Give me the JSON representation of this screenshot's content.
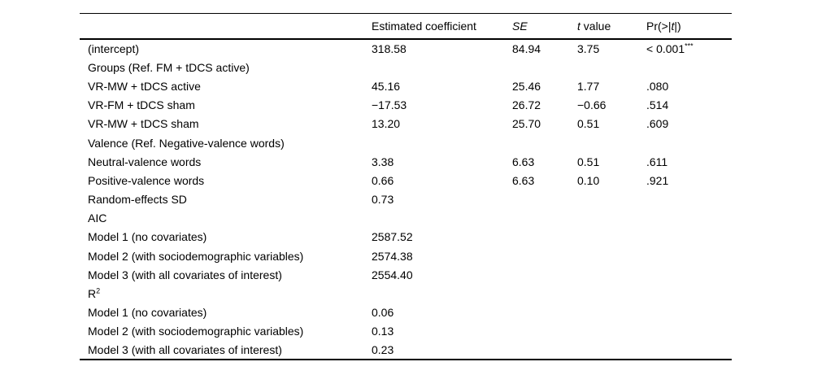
{
  "page": {
    "background_color": "#ffffff",
    "text_color": "#000000",
    "rule_color": "#000000"
  },
  "table": {
    "columns": [
      {
        "segs": [
          {
            "t": ""
          }
        ]
      },
      {
        "segs": [
          {
            "t": "Estimated coefficient"
          }
        ]
      },
      {
        "segs": [
          {
            "t": "SE",
            "i": true
          }
        ]
      },
      {
        "segs": [
          {
            "t": "t",
            "i": true
          },
          {
            "t": " value"
          }
        ]
      },
      {
        "segs": [
          {
            "t": "Pr(>|"
          },
          {
            "t": "t",
            "i": true
          },
          {
            "t": "|)"
          }
        ]
      }
    ],
    "rows": [
      {
        "label": "(intercept)",
        "cells": [
          "318.58",
          "84.94",
          "3.75",
          [
            {
              "t": "< 0.001"
            },
            {
              "t": "***",
              "sup": true
            }
          ]
        ]
      },
      {
        "label": "Groups (Ref. FM + tDCS active)",
        "cells": [
          "",
          "",
          "",
          ""
        ]
      },
      {
        "label": "VR-MW + tDCS active",
        "cells": [
          "45.16",
          "25.46",
          "1.77",
          ".080"
        ]
      },
      {
        "label": "VR-FM + tDCS sham",
        "cells": [
          "−17.53",
          "26.72",
          "−0.66",
          ".514"
        ]
      },
      {
        "label": "VR-MW + tDCS sham",
        "cells": [
          "13.20",
          "25.70",
          "0.51",
          ".609"
        ]
      },
      {
        "label": "Valence (Ref. Negative-valence words)",
        "cells": [
          "",
          "",
          "",
          ""
        ]
      },
      {
        "label": "Neutral-valence words",
        "cells": [
          "3.38",
          "6.63",
          "0.51",
          ".611"
        ]
      },
      {
        "label": "Positive-valence words",
        "cells": [
          "0.66",
          "6.63",
          "0.10",
          ".921"
        ]
      },
      {
        "label": "Random-effects SD",
        "cells": [
          "0.73",
          "",
          "",
          ""
        ]
      },
      {
        "label": "AIC",
        "cells": [
          "",
          "",
          "",
          ""
        ]
      },
      {
        "label": "Model 1 (no covariates)",
        "cells": [
          "2587.52",
          "",
          "",
          ""
        ]
      },
      {
        "label": "Model 2 (with sociodemographic variables)",
        "cells": [
          "2574.38",
          "",
          "",
          ""
        ]
      },
      {
        "label": "Model 3 (with all covariates of interest)",
        "cells": [
          "2554.40",
          "",
          "",
          ""
        ]
      },
      {
        "label": [
          {
            "t": "R"
          },
          {
            "t": "2",
            "sup": true
          }
        ],
        "cells": [
          "",
          "",
          "",
          ""
        ]
      },
      {
        "label": "Model 1 (no covariates)",
        "cells": [
          "0.06",
          "",
          "",
          ""
        ]
      },
      {
        "label": "Model 2 (with sociodemographic variables)",
        "cells": [
          "0.13",
          "",
          "",
          ""
        ]
      },
      {
        "label": "Model 3 (with all covariates of interest)",
        "cells": [
          "0.23",
          "",
          "",
          ""
        ]
      }
    ]
  }
}
